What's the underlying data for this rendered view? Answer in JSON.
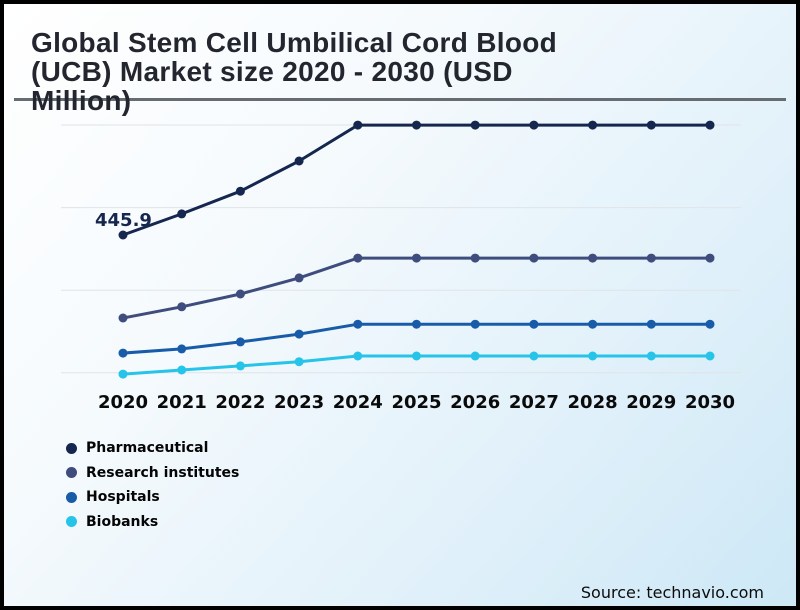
{
  "header": {
    "title": "Global Stem Cell Umbilical Cord Blood (UCB) Market size 2020 - 2030 (USD Million)",
    "title_lines": [
      "Global Stem Cell Umbilical Cord Blood",
      "(UCB) Market size 2020 - 2030 (USD",
      "Million)"
    ]
  },
  "footer": {
    "source": "Source: technavio.com"
  },
  "colors": {
    "pharmaceutical": "#15274e",
    "research_institutes": "#3e4d7d",
    "hospitals": "#185ca9",
    "biobanks": "#27c4e9",
    "title_text": "#23262f",
    "title_rule": "#676c72",
    "gridline": "#dfe4e8",
    "axis_label": "#0a0a0a",
    "background_end": "#cde8f6",
    "frame": "#010101"
  },
  "chart_data": {
    "type": "line",
    "title": "Global Stem Cell Umbilical Cord Blood (UCB) Market size 2020 - 2030 (USD Million)",
    "value_unit": "USD Million",
    "categories": [
      "2020",
      "2021",
      "2022",
      "2023",
      "2024",
      "2025",
      "2026",
      "2027",
      "2028",
      "2029",
      "2030"
    ],
    "series": [
      {
        "name": "Pharmaceutical",
        "color": "#15274e",
        "values": [
          445.9,
          497,
          552,
          625,
          712,
          712,
          712,
          712,
          712,
          712,
          712
        ]
      },
      {
        "name": "Research institutes",
        "color": "#3e4d7d",
        "values": [
          245,
          272,
          303,
          342,
          390,
          390,
          390,
          390,
          390,
          390,
          390
        ]
      },
      {
        "name": "Hospitals",
        "color": "#185ca9",
        "values": [
          160,
          170,
          187,
          206,
          230,
          230,
          230,
          230,
          230,
          230,
          230
        ]
      },
      {
        "name": "Biobanks",
        "color": "#27c4e9",
        "values": [
          109,
          119,
          129,
          139,
          153,
          153,
          153,
          153,
          153,
          153,
          153
        ]
      }
    ],
    "annotation": {
      "text": "445.9",
      "series": "Pharmaceutical",
      "year": "2020"
    },
    "xlabel": "",
    "ylabel": "",
    "y_axis_hidden": true,
    "ylim": [
      95,
      720
    ],
    "grid": "horizontal gridlines only, unlabeled, every 200 units",
    "legend_position": "bottom-left",
    "note": "all values except the labeled 445.9 are estimated from gridline spacing"
  }
}
